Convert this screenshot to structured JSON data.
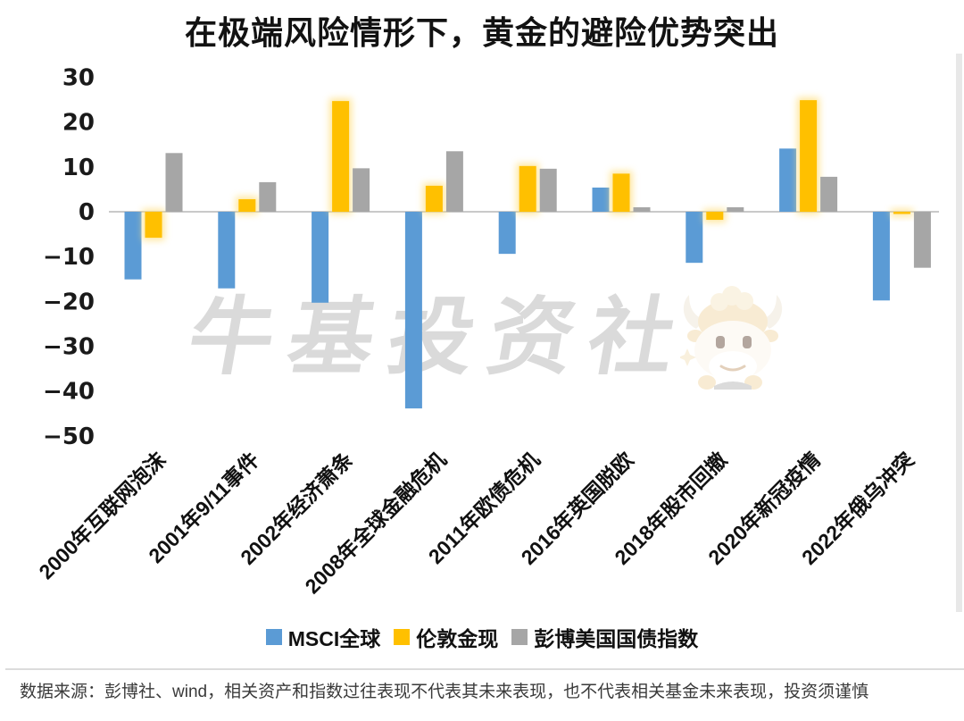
{
  "title": "在极端风险情形下，黄金的避险优势突出",
  "watermark": {
    "text": "牛基投资社",
    "mascot_icon": "bull-mascot-icon"
  },
  "footer": {
    "source_note": "数据来源：彭博社、wind，相关资产和指数过往表现不代表其未来表现，也不代表相关基金未来表现，投资须谨慎"
  },
  "chart_data": {
    "type": "bar",
    "title": "在极端风险情形下，黄金的避险优势突出",
    "categories": [
      "2000年互联网泡沫",
      "2001年9/11事件",
      "2002年经济萧条",
      "2008年全球金融危机",
      "2011年欧债危机",
      "2016年英国脱欧",
      "2018年股市回撤",
      "2020年新冠疫情",
      "2022年俄乌冲突"
    ],
    "series": [
      {
        "name": "MSCI全球",
        "color": "#5B9BD5",
        "values": [
          -15.1,
          -17.1,
          -20.3,
          -43.9,
          -9.4,
          5.4,
          -11.4,
          14.1,
          -19.8
        ]
      },
      {
        "name": "伦敦金现",
        "color": "#FFC000",
        "values": [
          -5.8,
          2.8,
          24.7,
          5.8,
          10.2,
          8.5,
          -1.8,
          24.9,
          -0.5
        ]
      },
      {
        "name": "彭博美国国债指数",
        "color": "#A6A6A6",
        "values": [
          13.1,
          6.6,
          9.7,
          13.5,
          9.6,
          1.0,
          1.0,
          7.8,
          -12.5
        ]
      }
    ],
    "xlabel": "",
    "ylabel": "",
    "ylim": [
      -50,
      30
    ],
    "ytick_step": 10,
    "grid": false,
    "zero_line": true,
    "legend_position": "bottom"
  }
}
